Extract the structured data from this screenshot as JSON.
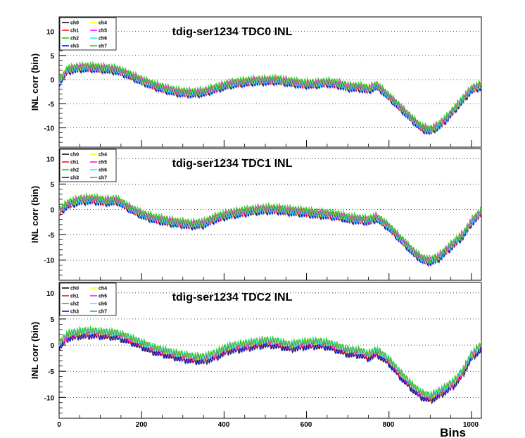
{
  "chart_data": [
    {
      "type": "line",
      "title": "tdig-ser1234 TDC0 INL",
      "ylabel": "INL corr (bin)",
      "xlabel": "",
      "xlim": [
        0,
        1024
      ],
      "ylim": [
        -14,
        13
      ],
      "x_ticks": [
        0,
        200,
        400,
        600,
        800,
        1000
      ],
      "y_ticks": [
        -10,
        -5,
        0,
        5,
        10
      ],
      "grid": "horizontal dotted",
      "legend_position": "top-left",
      "x": [
        0,
        20,
        50,
        80,
        110,
        140,
        170,
        200,
        230,
        260,
        290,
        320,
        350,
        380,
        410,
        440,
        470,
        500,
        530,
        560,
        590,
        620,
        650,
        680,
        700,
        730,
        750,
        770,
        800,
        830,
        860,
        880,
        900,
        920,
        940,
        960,
        980,
        1000,
        1024
      ],
      "series": [
        {
          "name": "ch0",
          "color": "#000000",
          "offset": -0.3
        },
        {
          "name": "ch1",
          "color": "#ff0000",
          "offset": -0.2
        },
        {
          "name": "ch2",
          "color": "#00cc00",
          "offset": 0.6
        },
        {
          "name": "ch3",
          "color": "#0000ff",
          "offset": -0.4
        },
        {
          "name": "ch4",
          "color": "#ffff00",
          "offset": 0.1
        },
        {
          "name": "ch5",
          "color": "#ff00ff",
          "offset": 0.2
        },
        {
          "name": "ch6",
          "color": "#00ffff",
          "offset": -0.1
        },
        {
          "name": "ch7",
          "color": "#33aa33",
          "offset": 0.3
        }
      ],
      "base_values": [
        -0.5,
        2,
        2.5,
        2.5,
        2.3,
        2,
        1,
        -0.2,
        -1.2,
        -2,
        -2.6,
        -2.8,
        -2.6,
        -1.8,
        -1,
        -0.6,
        -0.3,
        -0.2,
        -0.1,
        -0.5,
        -0.9,
        -0.9,
        -0.6,
        -1,
        -1.5,
        -1.6,
        -2,
        -1.2,
        -3.5,
        -6,
        -8.5,
        -10,
        -10.5,
        -9.5,
        -8,
        -6,
        -4,
        -2,
        -1.2
      ]
    },
    {
      "type": "line",
      "title": "tdig-ser1234 TDC1 INL",
      "ylabel": "INL corr (bin)",
      "xlabel": "",
      "xlim": [
        0,
        1024
      ],
      "ylim": [
        -14,
        12
      ],
      "x_ticks": [
        0,
        200,
        400,
        600,
        800,
        1000
      ],
      "y_ticks": [
        -10,
        -5,
        0,
        5,
        10
      ],
      "grid": "horizontal dotted",
      "legend_position": "top-left",
      "x": [
        0,
        20,
        50,
        80,
        110,
        140,
        170,
        200,
        230,
        260,
        290,
        320,
        350,
        380,
        410,
        440,
        470,
        500,
        530,
        560,
        590,
        620,
        650,
        680,
        700,
        730,
        750,
        770,
        800,
        830,
        860,
        880,
        900,
        920,
        940,
        960,
        980,
        1000,
        1024
      ],
      "series": [
        {
          "name": "ch0",
          "color": "#000000",
          "offset": -0.3
        },
        {
          "name": "ch1",
          "color": "#ff0000",
          "offset": -0.2
        },
        {
          "name": "ch2",
          "color": "#00cc00",
          "offset": 0.6
        },
        {
          "name": "ch3",
          "color": "#0000ff",
          "offset": -0.4
        },
        {
          "name": "ch4",
          "color": "#ffff00",
          "offset": 0.1
        },
        {
          "name": "ch5",
          "color": "#ff00ff",
          "offset": 0.2
        },
        {
          "name": "ch6",
          "color": "#00ffff",
          "offset": -0.1
        },
        {
          "name": "ch7",
          "color": "#33aa33",
          "offset": 0.3
        }
      ],
      "base_values": [
        -0.5,
        1,
        1.8,
        2,
        1.6,
        1.8,
        0.3,
        -1,
        -1.8,
        -2.3,
        -2.7,
        -3,
        -2.8,
        -1.7,
        -1,
        -0.6,
        -0.2,
        0,
        0,
        -0.3,
        -0.5,
        -0.8,
        -1,
        -1.3,
        -1.8,
        -2,
        -2.2,
        -1.6,
        -3.5,
        -6,
        -8.5,
        -9.8,
        -10.2,
        -9.5,
        -8,
        -6.5,
        -5,
        -2.5,
        -0.5
      ]
    },
    {
      "type": "line",
      "title": "tdig-ser1234 TDC2 INL",
      "ylabel": "INL corr (bin)",
      "xlabel": "Bins",
      "xlim": [
        0,
        1024
      ],
      "ylim": [
        -14,
        12
      ],
      "x_ticks": [
        0,
        200,
        400,
        600,
        800,
        1000
      ],
      "y_ticks": [
        -10,
        -5,
        0,
        5,
        10
      ],
      "grid": "horizontal dotted",
      "legend_position": "top-left",
      "x": [
        0,
        20,
        50,
        80,
        110,
        140,
        170,
        200,
        230,
        260,
        290,
        320,
        350,
        380,
        410,
        440,
        470,
        500,
        530,
        560,
        590,
        620,
        650,
        680,
        700,
        730,
        750,
        770,
        800,
        830,
        860,
        880,
        900,
        920,
        940,
        960,
        980,
        1000,
        1024
      ],
      "series": [
        {
          "name": "ch0",
          "color": "#000000",
          "offset": -0.6
        },
        {
          "name": "ch1",
          "color": "#ff0000",
          "offset": -0.2
        },
        {
          "name": "ch2",
          "color": "#00cc00",
          "offset": 0.6
        },
        {
          "name": "ch3",
          "color": "#0000ff",
          "offset": -0.5
        },
        {
          "name": "ch4",
          "color": "#ffff00",
          "offset": 0.2
        },
        {
          "name": "ch5",
          "color": "#ff00ff",
          "offset": 0.1
        },
        {
          "name": "ch6",
          "color": "#00ffff",
          "offset": 0.3
        },
        {
          "name": "ch7",
          "color": "#33aa33",
          "offset": 0.4
        }
      ],
      "base_values": [
        0,
        1.8,
        2.3,
        2.4,
        2.2,
        2,
        1.2,
        0.2,
        -0.8,
        -1.4,
        -2,
        -2.4,
        -2.6,
        -1.8,
        -0.6,
        -0.2,
        0.2,
        0.6,
        0.4,
        -0.2,
        0.2,
        0.4,
        0.2,
        -0.6,
        -1.2,
        -1.4,
        -2,
        -1.2,
        -3,
        -5.8,
        -8.2,
        -9.5,
        -10,
        -9.2,
        -8.2,
        -7,
        -5,
        -2,
        -0.2
      ]
    }
  ]
}
